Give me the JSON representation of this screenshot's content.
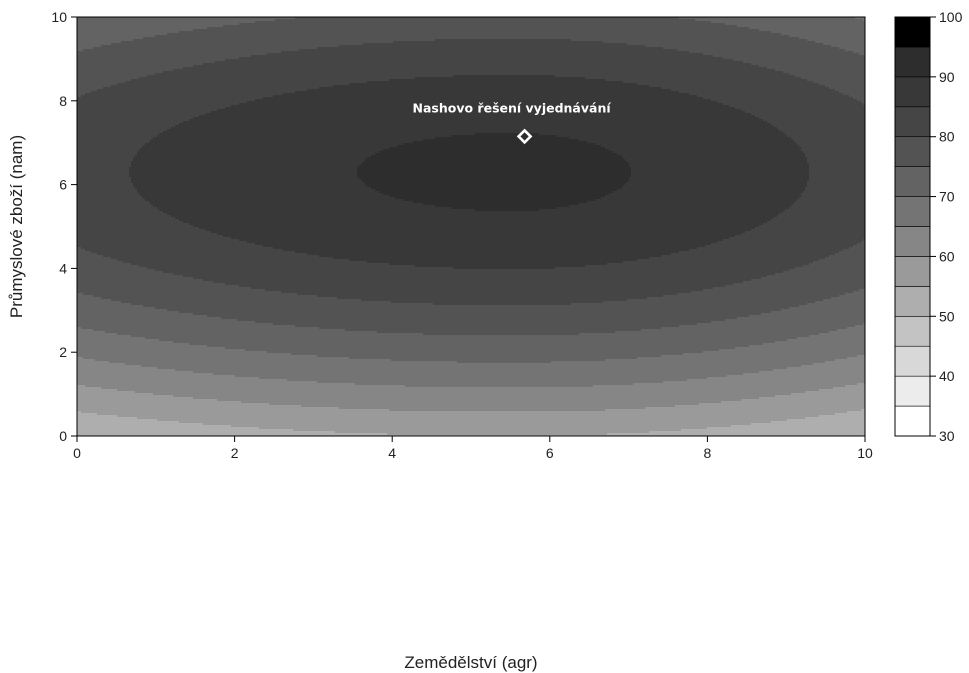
{
  "chart_data": {
    "type": "heatmap",
    "subtype": "filled-contour",
    "xlabel": "Zemědělství (agr)",
    "ylabel": "Průmyslové zboží (nam)",
    "xlim": [
      0,
      10
    ],
    "ylim": [
      0,
      10
    ],
    "xticks": [
      "0",
      "2",
      "4",
      "6",
      "8",
      "10"
    ],
    "yticks": [
      "0",
      "2",
      "4",
      "6",
      "8",
      "10"
    ],
    "colormap": "greys",
    "colorbar": {
      "ticks": [
        "30",
        "40",
        "50",
        "60",
        "70",
        "80",
        "90",
        "100"
      ],
      "levels": [
        30,
        35,
        40,
        45,
        50,
        55,
        60,
        65,
        70,
        75,
        80,
        85,
        90,
        95,
        100
      ],
      "colors": [
        "#ffffff",
        "#ececec",
        "#d8d8d8",
        "#c3c3c3",
        "#aeaeae",
        "#9a9a9a",
        "#868686",
        "#747474",
        "#636363",
        "#535353",
        "#454545",
        "#383838",
        "#2d2d2d",
        "#232323",
        "#000000"
      ],
      "placement": "right"
    },
    "surface": {
      "peak_value": 91,
      "peak_x": 5.5,
      "peak_y": 6.3,
      "falloff_x_left": 0.00292,
      "falloff_x_right": 0.00474,
      "falloff_y": 0.0127
    },
    "annotation": {
      "label": "Nashovo řešení vyjednávání",
      "x": 5.68,
      "y": 7.15,
      "marker": "diamond"
    },
    "grid": false,
    "legend": "none"
  }
}
